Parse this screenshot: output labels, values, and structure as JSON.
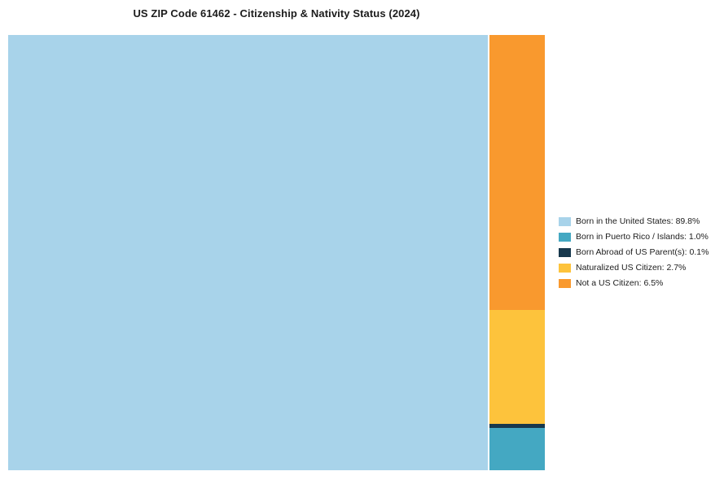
{
  "title": "US ZIP Code 61462 - Citizenship & Nativity Status (2024)",
  "chart_data": {
    "type": "treemap",
    "title": "US ZIP Code 61462 - Citizenship & Nativity Status (2024)",
    "categories": [
      "Born in the United States",
      "Born in Puerto Rico / Islands",
      "Born Abroad of US Parent(s)",
      "Naturalized US Citizen",
      "Not a US Citizen"
    ],
    "values": [
      89.8,
      1.0,
      0.1,
      2.7,
      6.5
    ],
    "colors": [
      "#A8D3EA",
      "#44A8C2",
      "#17384D",
      "#FDC33C",
      "#F9992E"
    ],
    "slugs": [
      "born-in-us",
      "born-puerto-rico",
      "born-abroad",
      "naturalized",
      "not-citizen"
    ],
    "legend": [
      {
        "label": "Born in the United States: 89.8%"
      },
      {
        "label": "Born in Puerto Rico / Islands: 1.0%"
      },
      {
        "label": "Born Abroad of US Parent(s): 0.1%"
      },
      {
        "label": "Naturalized US Citizen: 2.7%"
      },
      {
        "label": "Not a US Citizen: 6.5%"
      }
    ],
    "legend_position": "right",
    "layout": {
      "main_index": 0,
      "column_order": [
        4,
        3,
        2,
        1
      ]
    }
  }
}
